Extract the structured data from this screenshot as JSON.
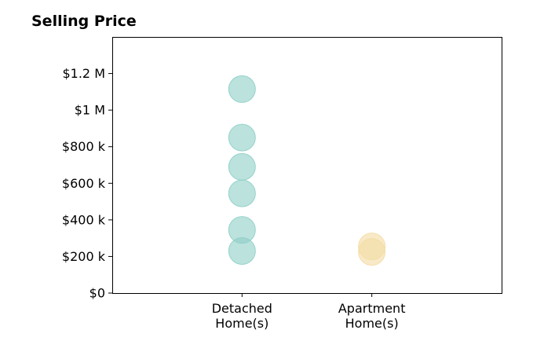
{
  "chart_data": {
    "type": "scatter",
    "title": "Selling Price",
    "xlabel": "",
    "ylabel": "",
    "ylim": [
      0,
      1400000
    ],
    "xlim": [
      0,
      3
    ],
    "y_ticks": [
      {
        "value": 0,
        "label": "$0"
      },
      {
        "value": 200000,
        "label": "$200 k"
      },
      {
        "value": 400000,
        "label": "$400 k"
      },
      {
        "value": 600000,
        "label": "$600 k"
      },
      {
        "value": 800000,
        "label": "$800 k"
      },
      {
        "value": 1000000,
        "label": "$1 M"
      },
      {
        "value": 1200000,
        "label": "$1.2 M"
      }
    ],
    "categories": [
      {
        "label_line1": "Detached",
        "label_line2": "Home(s)",
        "x": 1
      },
      {
        "label_line1": "Apartment",
        "label_line2": "Home(s)",
        "x": 2
      }
    ],
    "series": [
      {
        "category": "Detached Home(s)",
        "x": 1,
        "color": "#8ecfc6",
        "values": [
          1115000,
          850000,
          690000,
          545000,
          345000,
          230000
        ]
      },
      {
        "category": "Apartment Home(s)",
        "x": 2,
        "color": "#f4dca3",
        "values": [
          255000,
          225000
        ]
      }
    ],
    "grid": false,
    "legend": "none"
  }
}
